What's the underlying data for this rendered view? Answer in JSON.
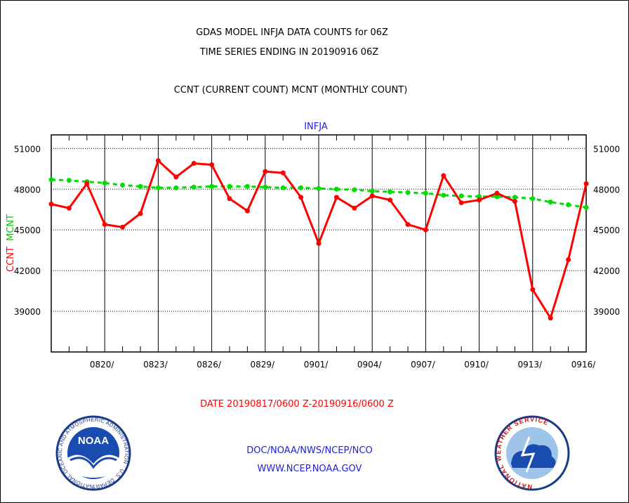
{
  "header": {
    "title_line1": "GDAS MODEL INFJA DATA COUNTS for 06Z",
    "title_line2": "TIME SERIES ENDING IN 20190916 06Z",
    "title_line3": "CCNT (CURRENT COUNT) MCNT (MONTHLY COUNT)"
  },
  "footer": {
    "date_range": "DATE 20190817/0600 Z-20190916/0600 Z",
    "org_path": "DOC/NOAA/NWS/NCEP/NCO",
    "website": "WWW.NCEP.NOAA.GOV",
    "noaa_logo_text": "NOAA",
    "noaa_ring_text": "NATIONAL OCEANIC AND ATMOSPHERIC ADMINISTRATION · U.S. DEPARTMENT OF COMMERCE",
    "nws_ring_text": "NATIONAL WEATHER SERVICE"
  },
  "colors": {
    "ccnt": "#ff0000",
    "mcnt": "#00dd00",
    "subtitle": "#2020dd"
  },
  "chart_data": {
    "type": "line",
    "title": "INFJA",
    "ylabel_left_1": "CCNT",
    "ylabel_left_2": "MCNT",
    "ylim": [
      36000,
      52000
    ],
    "yticks": [
      39000,
      42000,
      45000,
      48000,
      51000
    ],
    "xlim": [
      0,
      30
    ],
    "xticks": [
      {
        "x": 3,
        "label": "0820/"
      },
      {
        "x": 6,
        "label": "0823/"
      },
      {
        "x": 9,
        "label": "0826/"
      },
      {
        "x": 12,
        "label": "0829/"
      },
      {
        "x": 15,
        "label": "0901/"
      },
      {
        "x": 18,
        "label": "0904/"
      },
      {
        "x": 21,
        "label": "0907/"
      },
      {
        "x": 24,
        "label": "0910/"
      },
      {
        "x": 27,
        "label": "0913/"
      },
      {
        "x": 30,
        "label": "0916/"
      }
    ],
    "grid": true,
    "series": [
      {
        "name": "CCNT",
        "color": "#ff0000",
        "x": [
          0,
          1,
          2,
          3,
          4,
          5,
          6,
          7,
          8,
          9,
          10,
          11,
          12,
          13,
          14,
          15,
          16,
          17,
          18,
          19,
          20,
          21,
          22,
          23,
          24,
          25,
          26,
          27,
          28,
          29,
          30
        ],
        "values": [
          46900,
          46600,
          48400,
          45400,
          45200,
          46200,
          50100,
          48900,
          49900,
          49800,
          47300,
          46400,
          49300,
          49200,
          47400,
          44000,
          47400,
          46600,
          47500,
          47200,
          45400,
          45000,
          49000,
          47000,
          47200,
          47700,
          47100,
          40600,
          38500,
          42800,
          48400
        ]
      },
      {
        "name": "MCNT",
        "color": "#00dd00",
        "x": [
          0,
          1,
          2,
          3,
          4,
          5,
          6,
          7,
          8,
          9,
          10,
          11,
          12,
          13,
          14,
          15,
          16,
          17,
          18,
          19,
          20,
          21,
          22,
          23,
          24,
          25,
          26,
          27,
          28,
          29,
          30
        ],
        "values": [
          48700,
          48650,
          48550,
          48450,
          48300,
          48200,
          48100,
          48100,
          48150,
          48200,
          48200,
          48200,
          48150,
          48100,
          48100,
          48050,
          48000,
          47950,
          47850,
          47800,
          47750,
          47700,
          47550,
          47500,
          47450,
          47450,
          47400,
          47300,
          47050,
          46850,
          46650
        ]
      }
    ]
  }
}
